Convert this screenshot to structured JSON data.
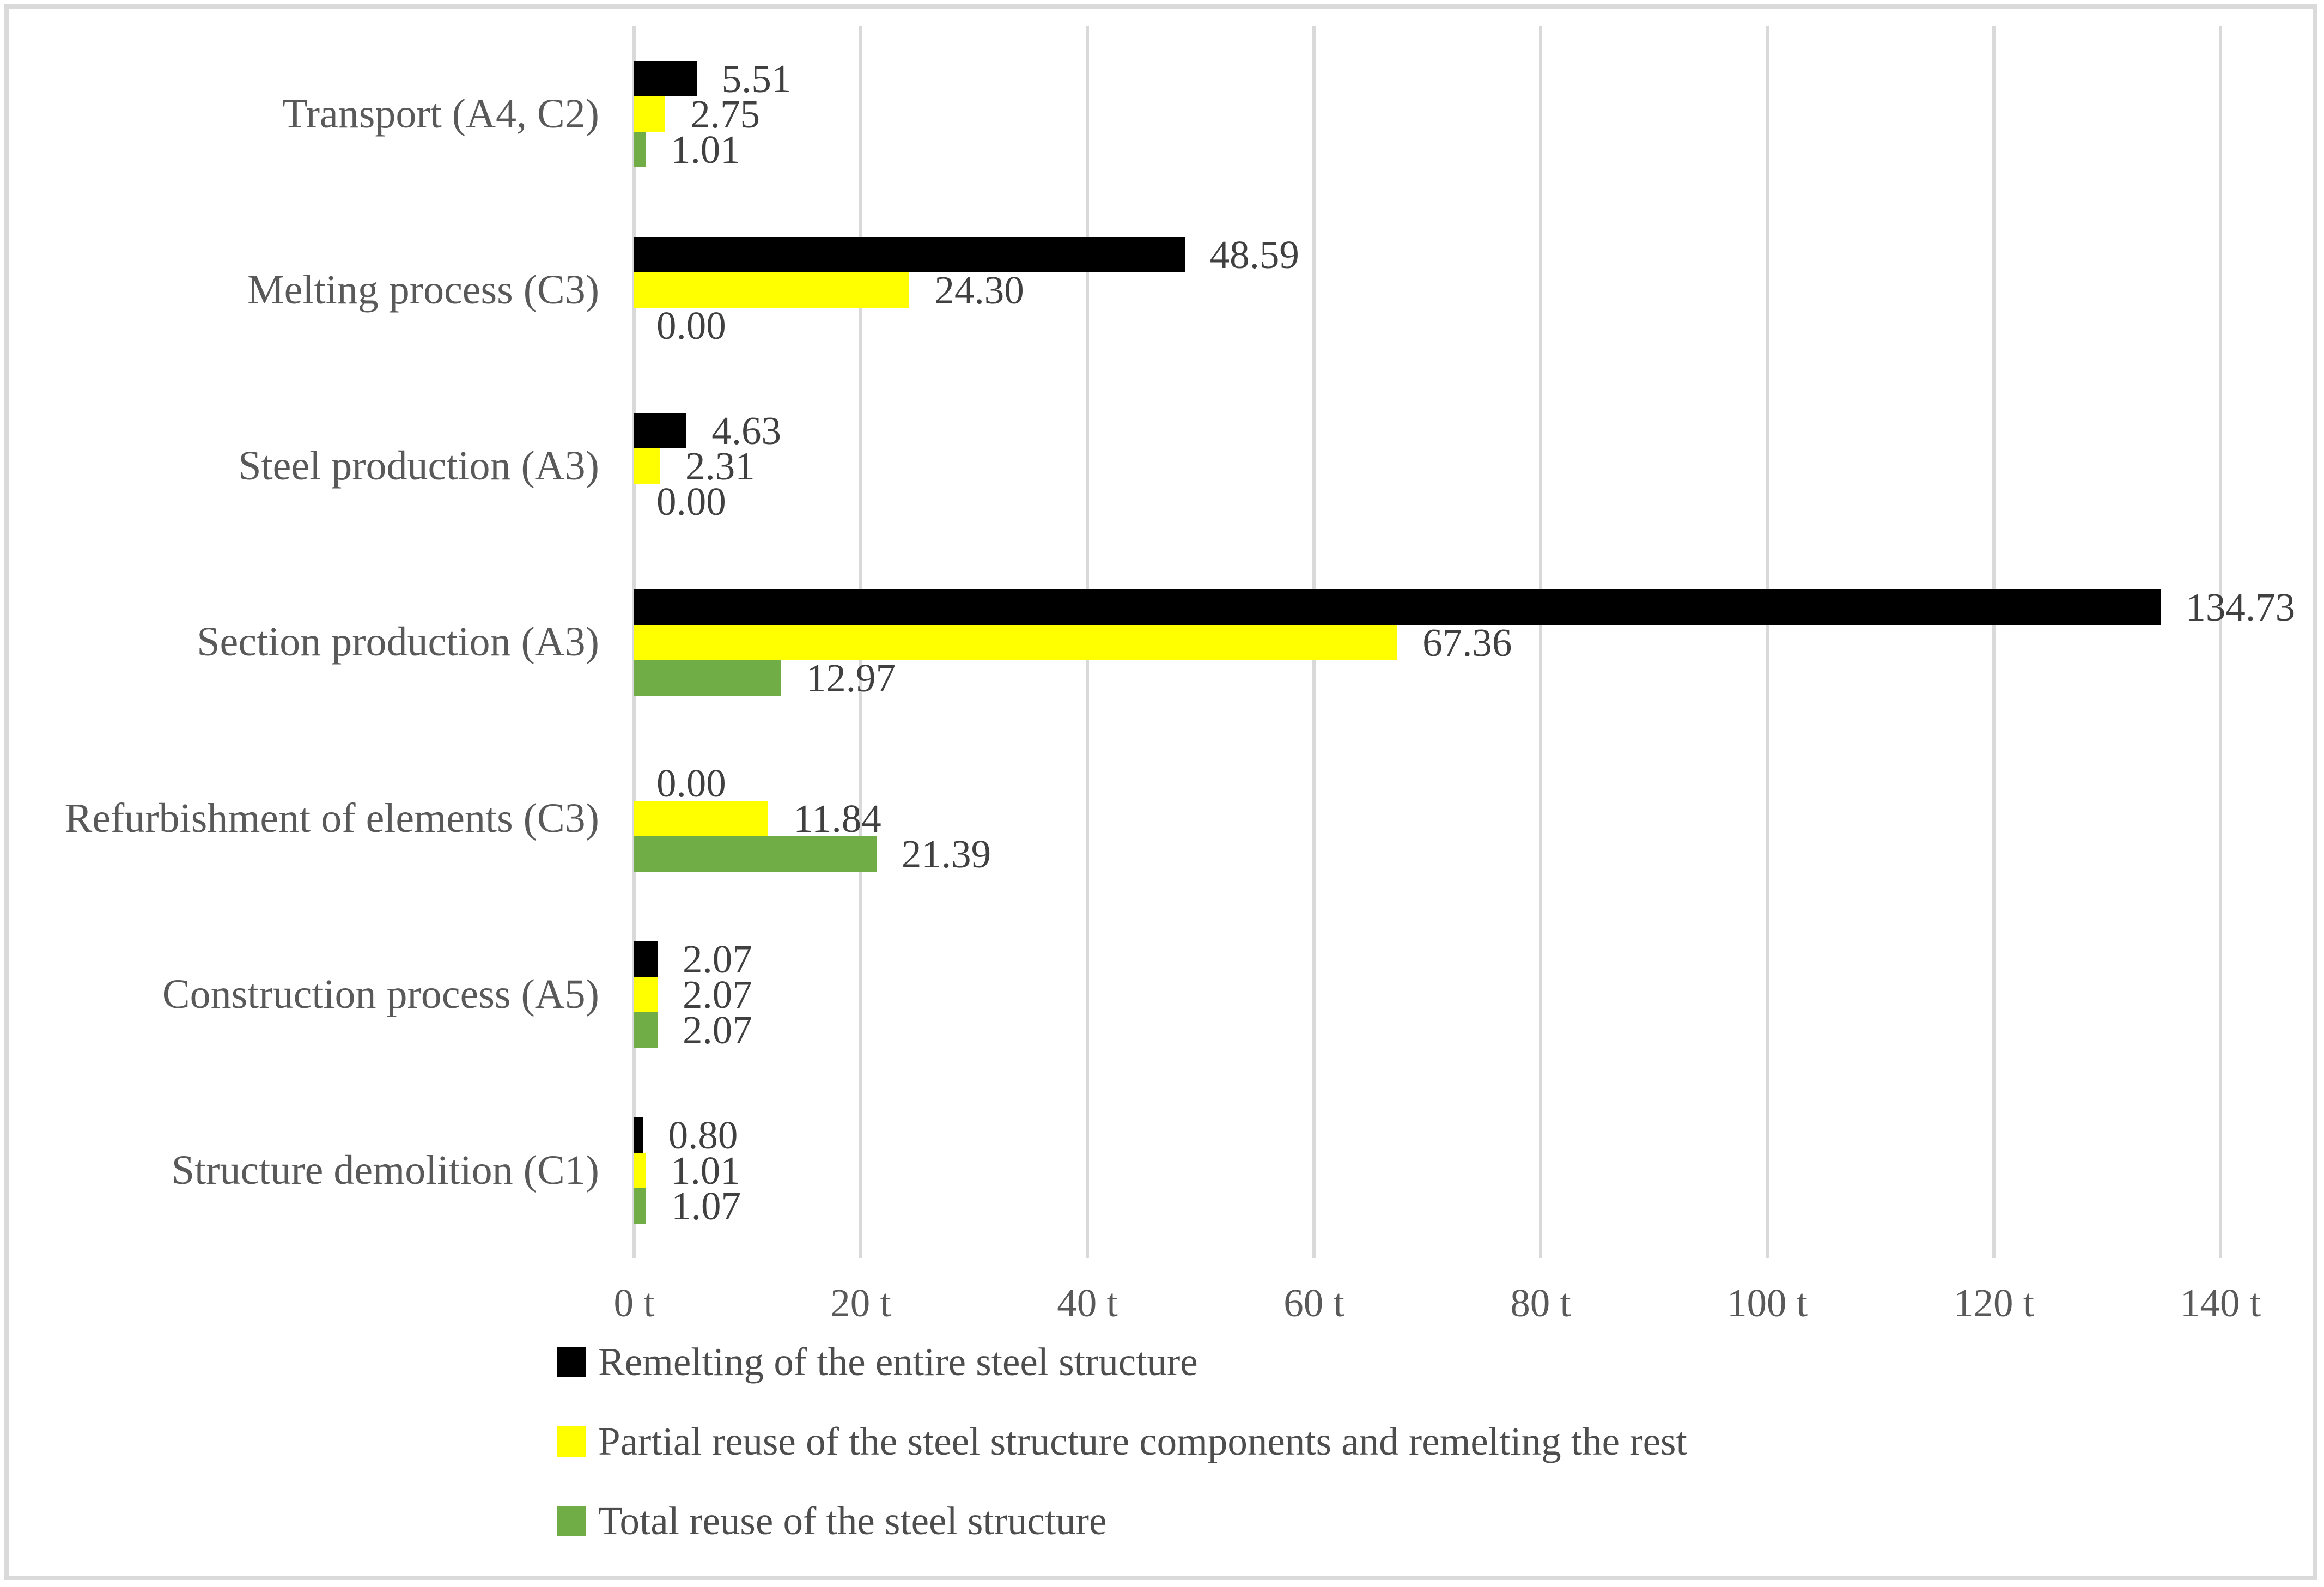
{
  "chart_data": {
    "type": "bar",
    "orientation": "horizontal",
    "title": "",
    "categories": [
      "Transport (A4, C2)",
      "Melting process (C3)",
      "Steel production (A3)",
      "Section production (A3)",
      "Refurbishment of elements (C3)",
      "Construction process (A5)",
      "Structure demolition (C1)"
    ],
    "series": [
      {
        "name": "Remelting of the entire steel structure",
        "color": "#000000",
        "values": [
          5.51,
          48.59,
          4.63,
          134.73,
          0.0,
          2.07,
          0.8
        ]
      },
      {
        "name": "Partial reuse of the steel structure components and remelting the rest",
        "color": "#FFFF00",
        "values": [
          2.75,
          24.3,
          2.31,
          67.36,
          11.84,
          2.07,
          1.01
        ]
      },
      {
        "name": "Total reuse of the steel structure",
        "color": "#70AD47",
        "values": [
          1.01,
          0.0,
          0.0,
          12.97,
          21.39,
          2.07,
          1.07
        ]
      }
    ],
    "x_axis": {
      "min": 0,
      "max": 140,
      "tick_step": 20,
      "tick_labels": [
        "0 t",
        "20 t",
        "40 t",
        "60 t",
        "80 t",
        "100 t",
        "120 t",
        "140 t"
      ],
      "unit": "t"
    },
    "data_labels": true,
    "label_decimals": 2,
    "grid": true,
    "legend_position": "bottom-left",
    "colors": {
      "gridline": "#D9D9D9",
      "frame_border": "#DADADA",
      "category_text": "#595959",
      "tick_text": "#595959",
      "data_label_text": "#404040",
      "legend_text": "#4D4D4D",
      "background": "#FFFFFF"
    }
  }
}
